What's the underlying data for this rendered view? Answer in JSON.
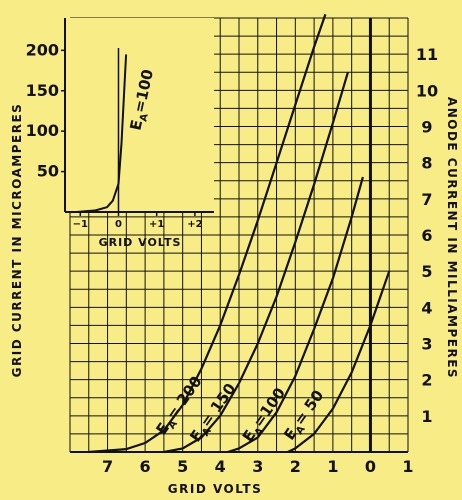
{
  "colors": {
    "background": "#f7ec86",
    "ink": "#111111"
  },
  "chart_data": [
    {
      "type": "line",
      "xlabel": "GRID VOLTS",
      "ylabel": "ANODE CURRENT IN MILLIAMPERES",
      "x_ticks": [
        "7",
        "6",
        "5",
        "4",
        "3",
        "2",
        "1",
        "0",
        "1"
      ],
      "y_ticks": [
        "1",
        "2",
        "3",
        "4",
        "5",
        "6",
        "7",
        "8",
        "9",
        "10",
        "11"
      ],
      "xlim": [
        -8,
        1
      ],
      "ylim": [
        0,
        12
      ],
      "grid": true,
      "series": [
        {
          "name": "EA=200",
          "x": [
            -7.5,
            -6.5,
            -6.0,
            -5.5,
            -5.0,
            -4.5,
            -4.0,
            -3.5,
            -3.0,
            -2.5,
            -2.0,
            -1.5,
            -1.2
          ],
          "y": [
            0,
            0.08,
            0.25,
            0.6,
            1.3,
            2.3,
            3.5,
            4.9,
            6.4,
            8.0,
            9.6,
            11.2,
            12.1
          ]
        },
        {
          "name": "EA=150",
          "x": [
            -5.5,
            -5.0,
            -4.5,
            -4.0,
            -3.5,
            -3.0,
            -2.5,
            -2.0,
            -1.5,
            -1.0,
            -0.6
          ],
          "y": [
            0,
            0.1,
            0.4,
            1.0,
            1.9,
            3.0,
            4.3,
            5.8,
            7.4,
            9.1,
            10.5
          ]
        },
        {
          "name": "EA=100",
          "x": [
            -3.8,
            -3.5,
            -3.0,
            -2.5,
            -2.0,
            -1.5,
            -1.0,
            -0.5,
            -0.2
          ],
          "y": [
            0,
            0.1,
            0.4,
            1.1,
            2.1,
            3.4,
            4.8,
            6.5,
            7.6
          ]
        },
        {
          "name": "EA=50",
          "x": [
            -2.2,
            -2.0,
            -1.5,
            -1.0,
            -0.5,
            0.0,
            0.5
          ],
          "y": [
            0,
            0.1,
            0.5,
            1.2,
            2.2,
            3.5,
            5.0
          ]
        }
      ],
      "labels": [
        {
          "text": "E",
          "sub": "A",
          "rest": "= 200",
          "series": "EA=200"
        },
        {
          "text": "E",
          "sub": "A",
          "rest": "= 150",
          "series": "EA=150"
        },
        {
          "text": "E",
          "sub": "A",
          "rest": "=100",
          "series": "EA=100"
        },
        {
          "text": "E",
          "sub": "A",
          "rest": "= 50",
          "series": "EA=50"
        }
      ]
    },
    {
      "type": "line",
      "xlabel": "GRID VOLTS",
      "ylabel": "GRID CURRENT IN MICROAMPERES",
      "x_ticks": [
        "−1",
        "0",
        "+1",
        "+2"
      ],
      "y_ticks": [
        "50",
        "100",
        "150",
        "200"
      ],
      "xlim": [
        -1.4,
        2.5
      ],
      "ylim": [
        0,
        240
      ],
      "series": [
        {
          "name": "EA=100",
          "x": [
            -1.1,
            -0.6,
            -0.3,
            -0.15,
            0.0,
            0.08,
            0.15,
            0.2
          ],
          "y": [
            0,
            2,
            6,
            14,
            35,
            85,
            150,
            195
          ]
        }
      ],
      "labels": [
        {
          "text": "E",
          "sub": "A",
          "rest": "=100",
          "series": "EA=100"
        }
      ]
    }
  ]
}
